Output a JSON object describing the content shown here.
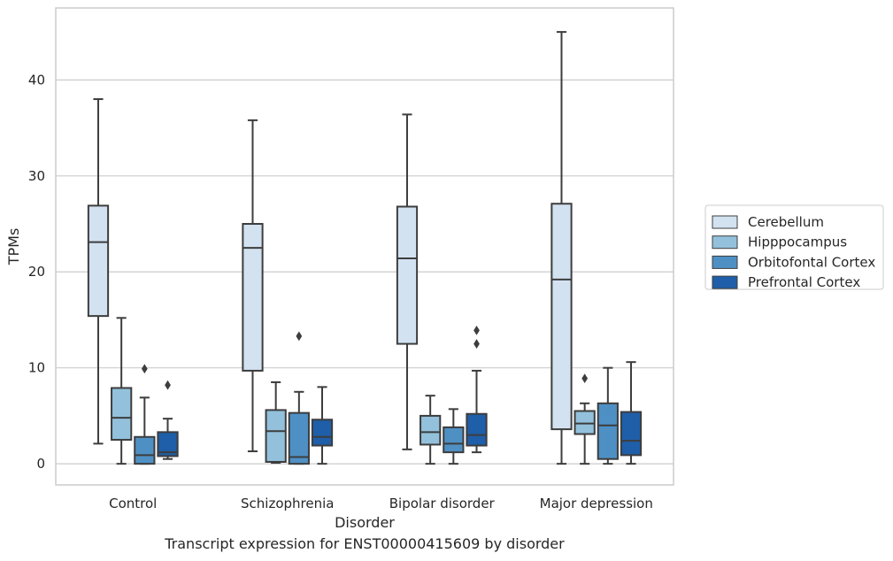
{
  "figure_caption": "Transcript expression for ENST00000415609 by disorder",
  "chart_data": {
    "type": "box",
    "title": "",
    "xlabel": "Disorder",
    "ylabel": "TPMs",
    "categories": [
      "Control",
      "Schizophrenia",
      "Bipolar disorder",
      "Major depression"
    ],
    "ylim": [
      -2.2,
      47.5
    ],
    "yticks": [
      0,
      10,
      20,
      30,
      40
    ],
    "grid": "horizontal",
    "legend_position": "right",
    "series": [
      {
        "name": "Cerebellum",
        "color": "#d3e2f1",
        "boxes": [
          {
            "whislo": 2.1,
            "q1": 15.4,
            "med": 23.1,
            "q3": 26.9,
            "whishi": 38.0,
            "fliers": []
          },
          {
            "whislo": 1.3,
            "q1": 9.7,
            "med": 22.5,
            "q3": 25.0,
            "whishi": 35.8,
            "fliers": []
          },
          {
            "whislo": 1.5,
            "q1": 12.5,
            "med": 21.4,
            "q3": 26.8,
            "whishi": 36.4,
            "fliers": []
          },
          {
            "whislo": 0.0,
            "q1": 3.6,
            "med": 19.2,
            "q3": 27.1,
            "whishi": 45.0,
            "fliers": []
          }
        ]
      },
      {
        "name": "Hipppocampus",
        "color": "#93c1dc",
        "boxes": [
          {
            "whislo": 0.0,
            "q1": 2.5,
            "med": 4.8,
            "q3": 7.9,
            "whishi": 15.2,
            "fliers": []
          },
          {
            "whislo": 0.1,
            "q1": 0.2,
            "med": 3.4,
            "q3": 5.6,
            "whishi": 8.5,
            "fliers": []
          },
          {
            "whislo": 0.0,
            "q1": 2.0,
            "med": 3.3,
            "q3": 5.0,
            "whishi": 7.1,
            "fliers": []
          },
          {
            "whislo": 0.0,
            "q1": 3.1,
            "med": 4.2,
            "q3": 5.5,
            "whishi": 6.3,
            "fliers": [
              8.9
            ]
          }
        ]
      },
      {
        "name": "Orbitofontal Cortex",
        "color": "#4f90c4",
        "boxes": [
          {
            "whislo": 0.0,
            "q1": 0.0,
            "med": 0.9,
            "q3": 2.8,
            "whishi": 6.9,
            "fliers": [
              9.9
            ]
          },
          {
            "whislo": 0.0,
            "q1": 0.0,
            "med": 0.7,
            "q3": 5.3,
            "whishi": 7.5,
            "fliers": [
              13.3
            ]
          },
          {
            "whislo": 0.0,
            "q1": 1.2,
            "med": 2.1,
            "q3": 3.8,
            "whishi": 5.7,
            "fliers": []
          },
          {
            "whislo": 0.0,
            "q1": 0.5,
            "med": 4.0,
            "q3": 6.3,
            "whishi": 10.0,
            "fliers": []
          }
        ]
      },
      {
        "name": "Prefrontal Cortex",
        "color": "#1f5ea8",
        "boxes": [
          {
            "whislo": 0.5,
            "q1": 0.8,
            "med": 1.2,
            "q3": 3.3,
            "whishi": 4.7,
            "fliers": [
              8.2
            ]
          },
          {
            "whislo": 0.0,
            "q1": 1.9,
            "med": 2.8,
            "q3": 4.6,
            "whishi": 8.0,
            "fliers": []
          },
          {
            "whislo": 1.2,
            "q1": 1.9,
            "med": 3.0,
            "q3": 5.2,
            "whishi": 9.7,
            "fliers": [
              12.5,
              13.9
            ]
          },
          {
            "whislo": 0.0,
            "q1": 0.9,
            "med": 2.4,
            "q3": 5.4,
            "whishi": 10.6,
            "fliers": []
          }
        ]
      }
    ]
  }
}
